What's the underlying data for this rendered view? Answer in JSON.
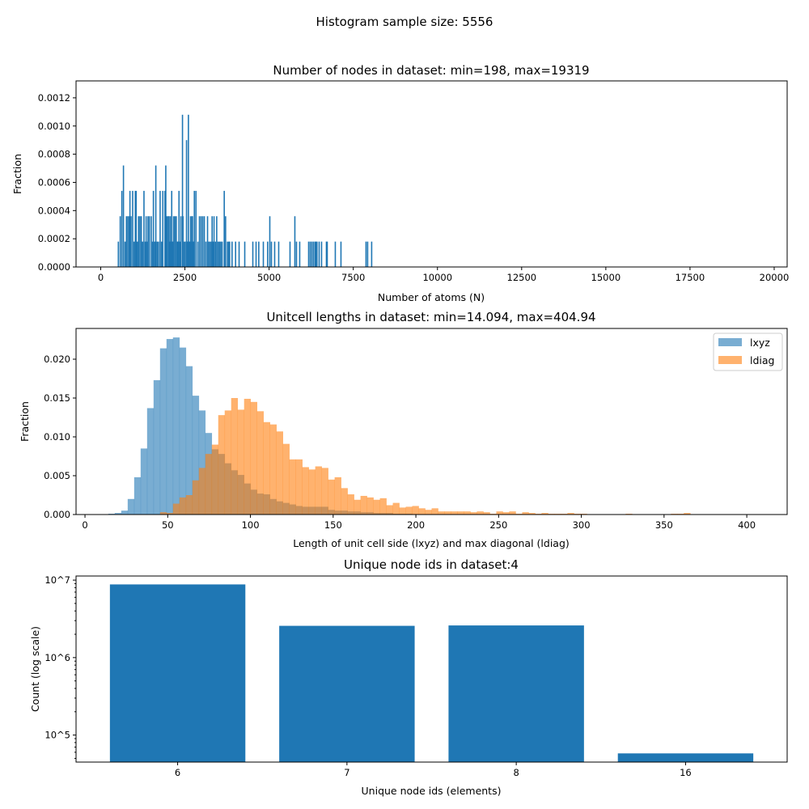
{
  "figure": {
    "suptitle": "Histogram sample size: 5556"
  },
  "chart_data": [
    {
      "type": "bar",
      "subtype": "histogram",
      "title": "Number of nodes in dataset: min=198, max=19319",
      "xlabel": "Number of atoms (N)",
      "ylabel": "Fraction",
      "xlim": [
        -733,
        20385
      ],
      "ylim": [
        0,
        0.00132
      ],
      "xticks": [
        0,
        2500,
        5000,
        7500,
        10000,
        12500,
        15000,
        17500,
        20000
      ],
      "xtick_labels": [
        "0",
        "2500",
        "5000",
        "7500",
        "10000",
        "12500",
        "15000",
        "17500",
        "20000"
      ],
      "yticks": [
        0,
        0.0002,
        0.0004,
        0.0006,
        0.0008,
        0.001,
        0.0012
      ],
      "ytick_labels": [
        "0.0000",
        "0.0002",
        "0.0004",
        "0.0006",
        "0.0008",
        "0.0010",
        "0.0012"
      ],
      "bin_width": 38.24,
      "color": "#1f77b4",
      "bars": [
        [
          2409,
          0.00108
        ],
        [
          2585,
          0.00108
        ],
        [
          2529,
          0.0009
        ],
        [
          656,
          0.00072
        ],
        [
          1617,
          0.00072
        ],
        [
          1913,
          0.00072
        ],
        [
          608,
          0.00054
        ],
        [
          849,
          0.00054
        ],
        [
          929,
          0.00054
        ],
        [
          1009,
          0.00054
        ],
        [
          1033,
          0.00054
        ],
        [
          1265,
          0.00054
        ],
        [
          1545,
          0.00054
        ],
        [
          1745,
          0.00054
        ],
        [
          1825,
          0.00054
        ],
        [
          1889,
          0.00054
        ],
        [
          2089,
          0.00054
        ],
        [
          2305,
          0.00054
        ],
        [
          2761,
          0.00054
        ],
        [
          2809,
          0.00054
        ],
        [
          3649,
          0.00054
        ],
        [
          560,
          0.00036
        ],
        [
          745,
          0.00036
        ],
        [
          785,
          0.00036
        ],
        [
          825,
          0.00036
        ],
        [
          881,
          0.00036
        ],
        [
          1105,
          0.00036
        ],
        [
          1145,
          0.00036
        ],
        [
          1185,
          0.00036
        ],
        [
          1329,
          0.00036
        ],
        [
          1385,
          0.00036
        ],
        [
          1425,
          0.00036
        ],
        [
          1481,
          0.00036
        ],
        [
          1945,
          0.00036
        ],
        [
          1985,
          0.00036
        ],
        [
          2001,
          0.00036
        ],
        [
          2045,
          0.00036
        ],
        [
          2145,
          0.00036
        ],
        [
          2185,
          0.00036
        ],
        [
          2225,
          0.00036
        ],
        [
          2361,
          0.00036
        ],
        [
          2425,
          0.00036
        ],
        [
          2649,
          0.00036
        ],
        [
          2689,
          0.00036
        ],
        [
          2705,
          0.00036
        ],
        [
          2913,
          0.00036
        ],
        [
          2961,
          0.00036
        ],
        [
          3009,
          0.00036
        ],
        [
          3057,
          0.00036
        ],
        [
          3153,
          0.00036
        ],
        [
          3289,
          0.00036
        ],
        [
          3345,
          0.00036
        ],
        [
          3425,
          0.00036
        ],
        [
          3689,
          0.00036
        ],
        [
          5002,
          0.00036
        ],
        [
          5746,
          0.00036
        ],
        [
          504,
          0.00018
        ],
        [
          704,
          0.00018
        ],
        [
          865,
          0.00018
        ],
        [
          969,
          0.00018
        ],
        [
          1065,
          0.00018
        ],
        [
          1225,
          0.00018
        ],
        [
          1305,
          0.00018
        ],
        [
          1361,
          0.00018
        ],
        [
          1521,
          0.00018
        ],
        [
          1585,
          0.00018
        ],
        [
          1657,
          0.00018
        ],
        [
          1697,
          0.00018
        ],
        [
          1785,
          0.00018
        ],
        [
          2025,
          0.00018
        ],
        [
          2065,
          0.00018
        ],
        [
          2105,
          0.00018
        ],
        [
          2121,
          0.00018
        ],
        [
          2245,
          0.00018
        ],
        [
          2265,
          0.00018
        ],
        [
          2285,
          0.00018
        ],
        [
          2337,
          0.00018
        ],
        [
          2465,
          0.00018
        ],
        [
          2489,
          0.00018
        ],
        [
          2545,
          0.00018
        ],
        [
          2565,
          0.00018
        ],
        [
          2605,
          0.00018
        ],
        [
          2625,
          0.00018
        ],
        [
          2665,
          0.00018
        ],
        [
          2725,
          0.00018
        ],
        [
          2745,
          0.00018
        ],
        [
          2865,
          0.00018
        ],
        [
          3105,
          0.00018
        ],
        [
          3185,
          0.00018
        ],
        [
          3225,
          0.00018
        ],
        [
          3265,
          0.00018
        ],
        [
          3325,
          0.00018
        ],
        [
          3385,
          0.00018
        ],
        [
          3465,
          0.00018
        ],
        [
          3505,
          0.00018
        ],
        [
          3545,
          0.00018
        ],
        [
          3585,
          0.00018
        ],
        [
          3745,
          0.00018
        ],
        [
          3785,
          0.00018
        ],
        [
          3809,
          0.00018
        ],
        [
          3881,
          0.00018
        ],
        [
          3986,
          0.00018
        ],
        [
          4090,
          0.00018
        ],
        [
          4258,
          0.00018
        ],
        [
          4498,
          0.00018
        ],
        [
          4594,
          0.00018
        ],
        [
          4674,
          0.00018
        ],
        [
          4810,
          0.00018
        ],
        [
          4938,
          0.00018
        ],
        [
          5050,
          0.00018
        ],
        [
          5146,
          0.00018
        ],
        [
          5266,
          0.00018
        ],
        [
          5602,
          0.00018
        ],
        [
          5794,
          0.00018
        ],
        [
          5890,
          0.00018
        ],
        [
          6155,
          0.00018
        ],
        [
          6203,
          0.00018
        ],
        [
          6251,
          0.00018
        ],
        [
          6299,
          0.00018
        ],
        [
          6347,
          0.00018
        ],
        [
          6371,
          0.00018
        ],
        [
          6403,
          0.00018
        ],
        [
          6467,
          0.00018
        ],
        [
          6539,
          0.00018
        ],
        [
          6683,
          0.00018
        ],
        [
          6707,
          0.00018
        ],
        [
          6947,
          0.00018
        ],
        [
          7115,
          0.00018
        ],
        [
          7859,
          0.00018
        ],
        [
          7907,
          0.00018
        ],
        [
          8027,
          0.00018
        ]
      ]
    },
    {
      "type": "bar",
      "subtype": "overlaid histogram",
      "title": "Unitcell lengths in dataset: min=14.094, max=404.94",
      "xlabel": "Length of unit cell side (lxyz) and max diagonal (ldiag)",
      "ylabel": "Fraction",
      "xlim": [
        -5.4,
        424.4
      ],
      "ylim": [
        0,
        0.02396
      ],
      "xticks": [
        0,
        50,
        100,
        150,
        200,
        250,
        300,
        350,
        400
      ],
      "xtick_labels": [
        "0",
        "50",
        "100",
        "150",
        "200",
        "250",
        "300",
        "350",
        "400"
      ],
      "yticks": [
        0,
        0.005,
        0.01,
        0.015,
        0.02
      ],
      "ytick_labels": [
        "0.000",
        "0.005",
        "0.010",
        "0.015",
        "0.020"
      ],
      "bin_start": 14.094,
      "bin_width": 3.90846,
      "alpha": 0.6,
      "legend_position": "top-right",
      "series": [
        {
          "name": "lxyz",
          "color": "#1f77b4",
          "values": [
            0.0001,
            0.0002,
            0.0005,
            0.002,
            0.0048,
            0.0085,
            0.0137,
            0.0173,
            0.0214,
            0.0226,
            0.0228,
            0.0215,
            0.0191,
            0.0153,
            0.0134,
            0.0105,
            0.0084,
            0.0078,
            0.0066,
            0.0057,
            0.0051,
            0.004,
            0.0032,
            0.0027,
            0.0026,
            0.002,
            0.0017,
            0.0015,
            0.0013,
            0.0011,
            0.001,
            0.001,
            0.001,
            0.001,
            0.0006,
            0.0005,
            0.0005,
            0.0004,
            0.0004,
            0.0003,
            0.0003,
            0.0002,
            0.0002,
            0.0002,
            0.0001,
            0.0001,
            0.0001,
            0,
            0,
            0,
            0,
            0,
            0,
            0,
            0,
            0,
            0,
            0,
            0,
            0,
            0,
            0,
            0,
            0,
            0,
            0,
            0,
            0,
            0,
            0,
            0,
            0,
            0,
            0,
            0,
            0,
            0,
            0,
            0,
            0,
            0,
            0,
            0,
            0,
            0,
            0,
            0,
            0,
            0,
            0,
            0,
            0,
            0,
            0,
            0,
            0,
            0,
            0,
            0,
            0
          ]
        },
        {
          "name": "ldiag",
          "color": "#ff7f0e",
          "values": [
            0,
            0,
            0,
            0,
            0,
            0,
            0,
            0,
            0.0003,
            0.0002,
            0.0014,
            0.0022,
            0.0025,
            0.0044,
            0.006,
            0.0078,
            0.009,
            0.0128,
            0.0134,
            0.015,
            0.0135,
            0.0149,
            0.0145,
            0.0133,
            0.0119,
            0.0116,
            0.0107,
            0.0091,
            0.0071,
            0.0071,
            0.0061,
            0.0058,
            0.0062,
            0.006,
            0.0045,
            0.0048,
            0.0034,
            0.0026,
            0.0019,
            0.0024,
            0.0022,
            0.0019,
            0.0021,
            0.0012,
            0.0015,
            0.0009,
            0.001,
            0.0011,
            0.0008,
            0.0006,
            0.0008,
            0.0004,
            0.0004,
            0.0004,
            0.0004,
            0.0004,
            0.0003,
            0.0004,
            0.0003,
            0.0001,
            0.0004,
            0.0003,
            0.0004,
            0.0001,
            0.0003,
            0.0002,
            0.0001,
            0.0002,
            0.0001,
            0.0001,
            0.0001,
            0.0002,
            0.0001,
            0.0001,
            0,
            0,
            0,
            0,
            0,
            0,
            0.0001,
            0,
            0,
            0,
            0,
            0,
            0,
            0.0001,
            0.0001,
            0.0002,
            0,
            0,
            0,
            0,
            0,
            0,
            0,
            0,
            0,
            0
          ]
        }
      ]
    },
    {
      "type": "bar",
      "title": "Unique node ids in dataset:4",
      "xlabel": "Unique node ids (elements)",
      "ylabel": "Count (log scale)",
      "yscale": "log",
      "ylim": [
        44800,
        11300000
      ],
      "yticks": [
        100000,
        1000000,
        10000000
      ],
      "ytick_labels": [
        "10^5",
        "10^6",
        "10^7"
      ],
      "categories": [
        "6",
        "7",
        "8",
        "16"
      ],
      "values": [
        8800000,
        2570000,
        2600000,
        58000
      ],
      "color": "#1f77b4"
    }
  ]
}
